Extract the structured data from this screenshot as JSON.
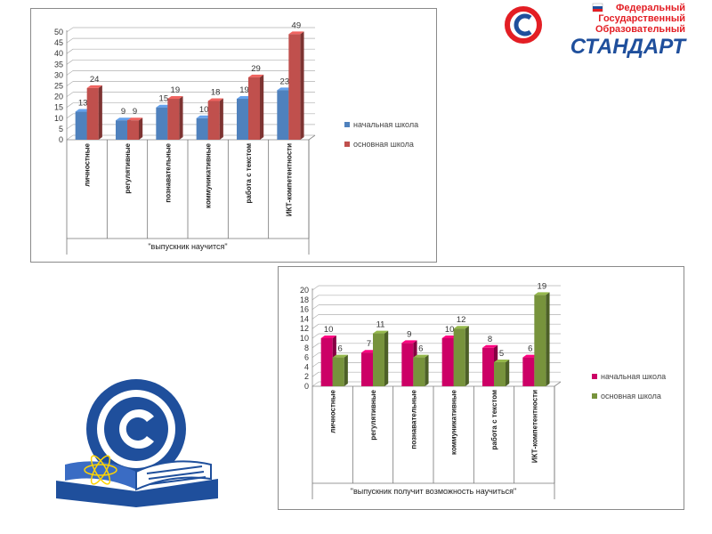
{
  "brand": {
    "lines": [
      "Федеральный",
      "Государственный",
      "Образовательный"
    ],
    "word": "СТАНДАРТ",
    "colors": {
      "red": "#e31e24",
      "blue": "#1f4f9c",
      "white": "#ffffff"
    }
  },
  "chart_data": [
    {
      "type": "bar",
      "xlabel": "\"выпускник научится\"",
      "categories": [
        "личностные",
        "регулятивные",
        "познавательные",
        "коммуникативные",
        "работа с текстом",
        "ИКТ-компетентности"
      ],
      "ylim": [
        0,
        50
      ],
      "yticks": [
        0,
        5,
        10,
        15,
        20,
        25,
        30,
        35,
        40,
        45,
        50
      ],
      "grid": true,
      "legend_position": "right",
      "series": [
        {
          "name": "начальная школа",
          "color": "#4f81bd",
          "values": [
            13,
            9,
            15,
            10,
            19,
            23
          ]
        },
        {
          "name": "основная школа",
          "color": "#c0504d",
          "values": [
            24,
            9,
            19,
            18,
            29,
            49
          ]
        }
      ]
    },
    {
      "type": "bar",
      "xlabel": "\"выпускник получит возможность научиться\"",
      "categories": [
        "личностные",
        "регулятивные",
        "познавательные",
        "коммуникативные",
        "работа с текстом",
        "ИКТ-компетентности"
      ],
      "ylim": [
        0,
        20
      ],
      "yticks": [
        0,
        2,
        4,
        6,
        8,
        10,
        12,
        14,
        16,
        18,
        20
      ],
      "grid": true,
      "legend_position": "right",
      "series": [
        {
          "name": "начальная школа",
          "color": "#cc0066",
          "values": [
            10,
            7,
            9,
            10,
            8,
            6
          ]
        },
        {
          "name": "основная школа",
          "color": "#77933c",
          "values": [
            6,
            11,
            6,
            12,
            5,
            19
          ]
        }
      ]
    }
  ]
}
